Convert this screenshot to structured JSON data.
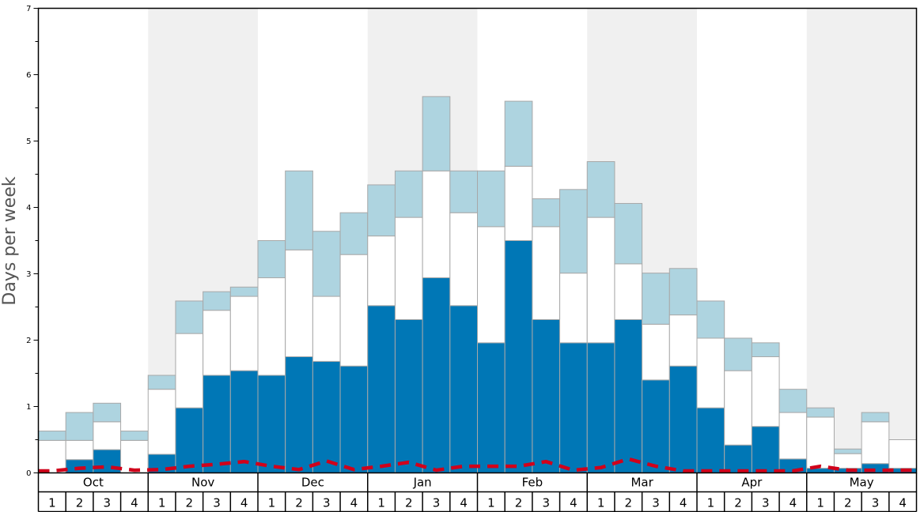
{
  "chart_data": {
    "type": "bar",
    "stacked": true,
    "ylabel": "Days per week",
    "ylim": [
      0,
      7
    ],
    "y_ticks": [
      "0",
      "1",
      "2",
      "3",
      "4",
      "5",
      "6",
      "7"
    ],
    "months": [
      "Oct",
      "Nov",
      "Dec",
      "Jan",
      "Feb",
      "Mar",
      "Apr",
      "May"
    ],
    "weeks": [
      "1",
      "2",
      "3",
      "4"
    ],
    "colors": {
      "dark": "#0077b6",
      "middle": "#ffffff",
      "light": "#aed4e0",
      "line": "#d0021b",
      "shade": "#f0f0f0"
    },
    "series": [
      {
        "values": [
          0.0,
          0.2,
          0.35,
          0.0,
          0.28,
          0.98,
          1.47,
          1.54,
          1.47,
          1.75,
          1.68,
          1.61,
          2.52,
          2.31,
          2.94,
          2.52,
          1.96,
          3.5,
          2.31,
          1.96,
          1.96,
          2.31,
          1.4,
          1.61,
          0.98,
          0.42,
          0.7,
          0.21,
          0.07,
          0.07,
          0.14,
          0.07
        ]
      },
      {
        "values": [
          0.49,
          0.29,
          0.42,
          0.49,
          0.98,
          1.12,
          0.98,
          1.12,
          1.47,
          1.61,
          0.98,
          1.68,
          1.05,
          1.54,
          1.61,
          1.4,
          1.75,
          1.12,
          1.4,
          1.05,
          1.89,
          0.84,
          0.84,
          0.77,
          1.05,
          1.12,
          1.05,
          0.7,
          0.77,
          0.22,
          0.63,
          0.43
        ]
      },
      {
        "values": [
          0.14,
          0.42,
          0.28,
          0.14,
          0.21,
          0.49,
          0.28,
          0.14,
          0.56,
          1.19,
          0.98,
          0.63,
          0.77,
          0.7,
          1.12,
          0.63,
          0.84,
          0.98,
          0.42,
          1.26,
          0.84,
          0.91,
          0.77,
          0.7,
          0.56,
          0.49,
          0.21,
          0.35,
          0.14,
          0.07,
          0.14,
          0.0
        ]
      }
    ],
    "line": {
      "values": [
        0.03,
        0.07,
        0.09,
        0.04,
        0.05,
        0.1,
        0.13,
        0.17,
        0.1,
        0.05,
        0.18,
        0.05,
        0.1,
        0.16,
        0.04,
        0.1,
        0.1,
        0.1,
        0.17,
        0.04,
        0.08,
        0.21,
        0.1,
        0.03,
        0.03,
        0.03,
        0.03,
        0.03,
        0.1,
        0.04,
        0.04,
        0.04
      ]
    }
  }
}
